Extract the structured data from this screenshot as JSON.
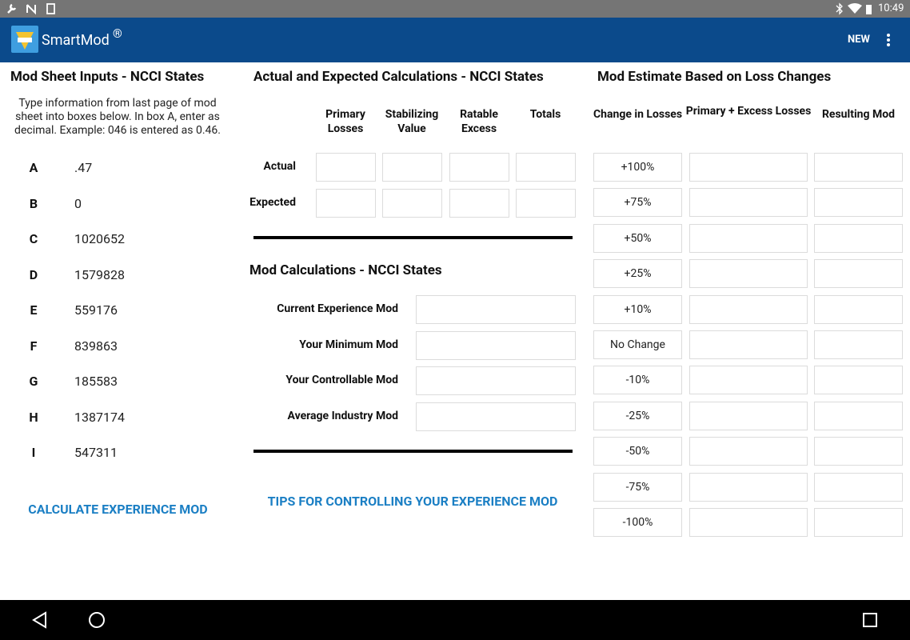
{
  "status_bar": {
    "time": "10:49"
  },
  "app_bar": {
    "title": "SmartMod",
    "trademark": "®",
    "action": "NEW"
  },
  "inputs": {
    "title": "Mod Sheet Inputs - NCCI States",
    "instructions": "Type information from last page of mod sheet into boxes below. In box A, enter as decimal. Example: 046 is entered as 0.46.",
    "fields": [
      {
        "label": "A",
        "value": ".47"
      },
      {
        "label": "B",
        "value": "0"
      },
      {
        "label": "C",
        "value": "1020652"
      },
      {
        "label": "D",
        "value": "1579828"
      },
      {
        "label": "E",
        "value": "559176"
      },
      {
        "label": "F",
        "value": "839863"
      },
      {
        "label": "G",
        "value": "185583"
      },
      {
        "label": "H",
        "value": "1387174"
      },
      {
        "label": "I",
        "value": "547311"
      }
    ],
    "button": "CALCULATE EXPERIENCE MOD"
  },
  "calculations": {
    "title": "Actual and Expected Calculations - NCCI States",
    "columns": [
      "Primary Losses",
      "Stabilizing Value",
      "Ratable Excess",
      "Totals"
    ],
    "rows": [
      "Actual",
      "Expected"
    ]
  },
  "mod_calculations": {
    "title": "Mod Calculations - NCCI States",
    "rows": [
      "Current Experience Mod",
      "Your Minimum Mod",
      "Your Controllable Mod",
      "Average Industry Mod"
    ],
    "link": "TIPS FOR CONTROLLING YOUR EXPERIENCE MOD"
  },
  "estimate": {
    "title": "Mod Estimate Based on Loss Changes",
    "columns": [
      "Change in Losses",
      "Primary + Excess Losses",
      "Resulting Mod"
    ],
    "changes": [
      "+100%",
      "+75%",
      "+50%",
      "+25%",
      "+10%",
      "No Change",
      "-10%",
      "-25%",
      "-50%",
      "-75%",
      "-100%"
    ]
  }
}
